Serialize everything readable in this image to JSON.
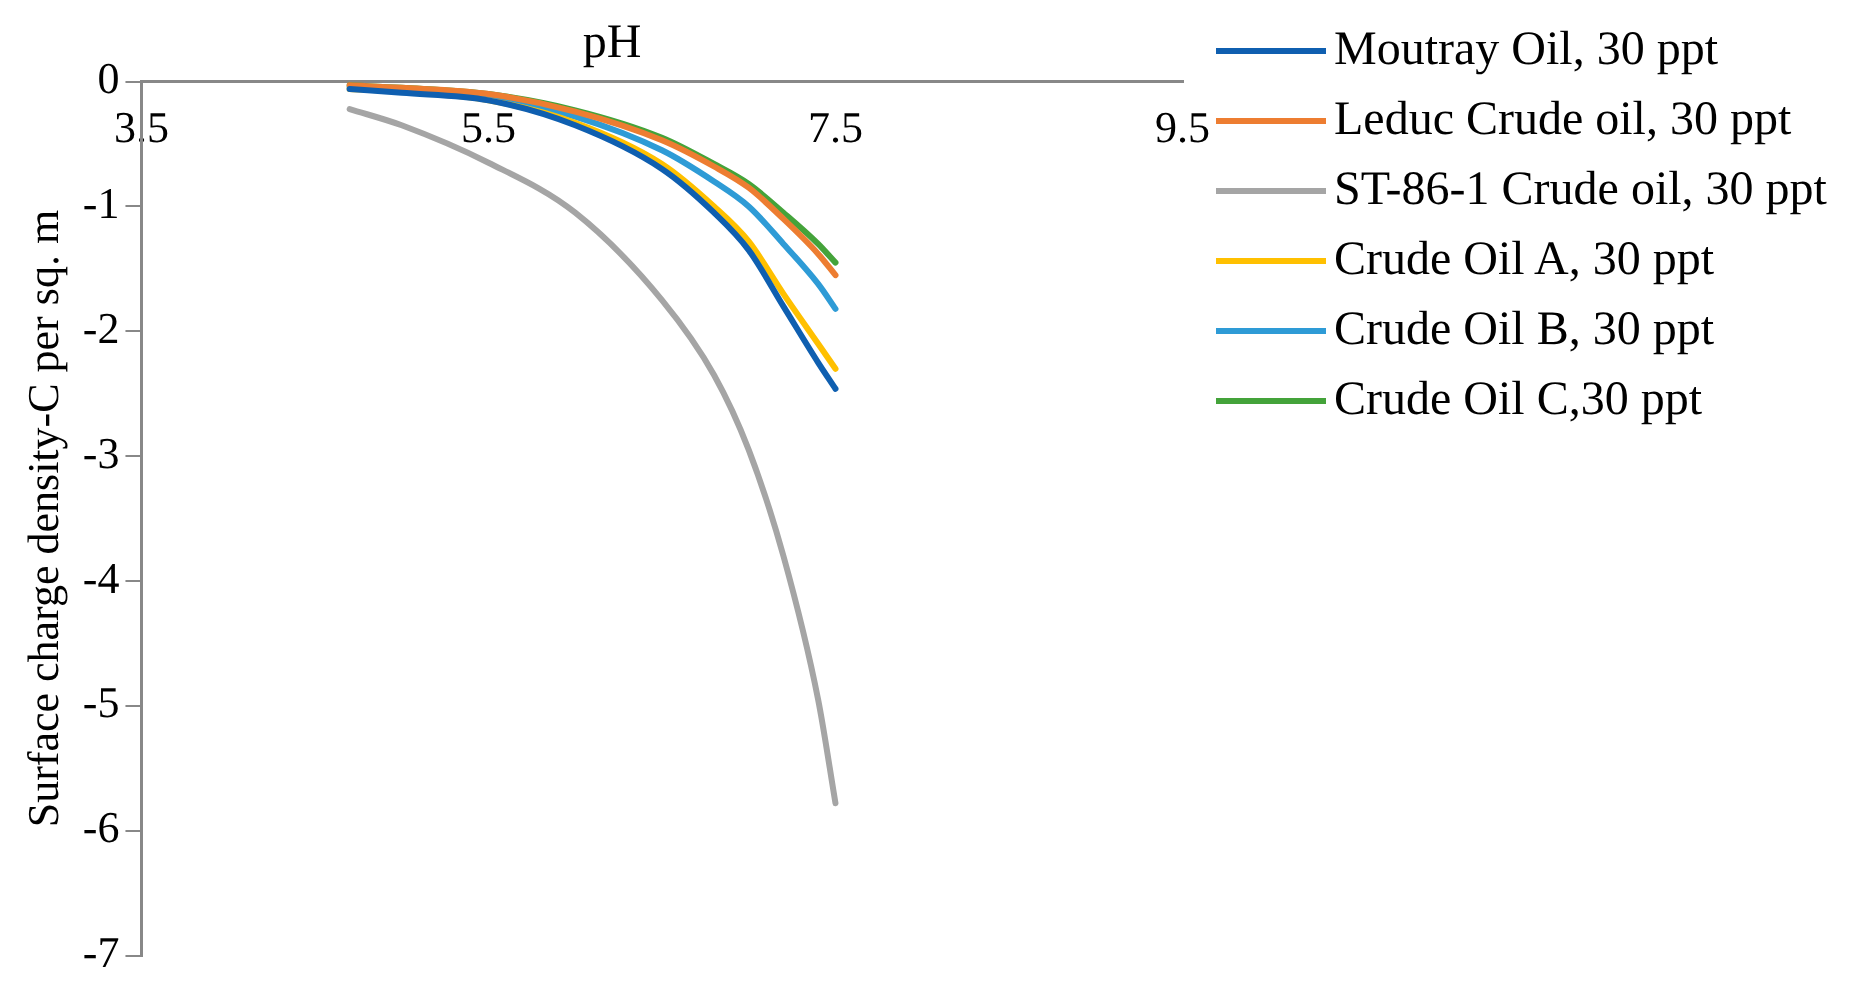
{
  "chart_data": {
    "type": "line",
    "xlabel": "pH",
    "ylabel": "Surface charge density-C per sq. m",
    "x": [
      4.7,
      5.0,
      5.5,
      6.0,
      6.5,
      6.8,
      7.0,
      7.2,
      7.4,
      7.5
    ],
    "series": [
      {
        "name": "Moutray Oil, 30 ppt",
        "color": "#0f5fb0",
        "values": [
          -0.06,
          -0.09,
          -0.15,
          -0.35,
          -0.7,
          -1.05,
          -1.35,
          -1.8,
          -2.25,
          -2.46
        ]
      },
      {
        "name": "Leduc Crude oil, 30 ppt",
        "color": "#ed7d31",
        "values": [
          -0.03,
          -0.05,
          -0.1,
          -0.24,
          -0.47,
          -0.68,
          -0.85,
          -1.1,
          -1.38,
          -1.55
        ]
      },
      {
        "name": "ST-86-1 Crude oil, 30 ppt",
        "color": "#a5a5a5",
        "values": [
          -0.22,
          -0.35,
          -0.65,
          -1.05,
          -1.75,
          -2.35,
          -2.95,
          -3.8,
          -4.95,
          -5.78
        ]
      },
      {
        "name": "Crude Oil A, 30 ppt",
        "color": "#ffc000",
        "values": [
          -0.06,
          -0.08,
          -0.15,
          -0.33,
          -0.66,
          -1.0,
          -1.28,
          -1.7,
          -2.1,
          -2.3
        ]
      },
      {
        "name": "Crude Oil B, 30 ppt",
        "color": "#2e9bd6",
        "values": [
          -0.05,
          -0.07,
          -0.12,
          -0.28,
          -0.55,
          -0.8,
          -1.0,
          -1.3,
          -1.62,
          -1.82
        ]
      },
      {
        "name": "Crude Oil C,30 ppt",
        "color": "#44a33a",
        "values": [
          -0.03,
          -0.05,
          -0.1,
          -0.23,
          -0.45,
          -0.66,
          -0.82,
          -1.05,
          -1.3,
          -1.45
        ]
      }
    ],
    "xlim": [
      3.5,
      9.5
    ],
    "xticks": [
      3.5,
      5.5,
      7.5,
      9.5
    ],
    "ylim": [
      -7,
      0
    ],
    "yticks": [
      0,
      -1,
      -2,
      -3,
      -4,
      -5,
      -6,
      -7
    ],
    "grid": false,
    "legend": "right",
    "marker": "none",
    "line_style": "solid"
  }
}
